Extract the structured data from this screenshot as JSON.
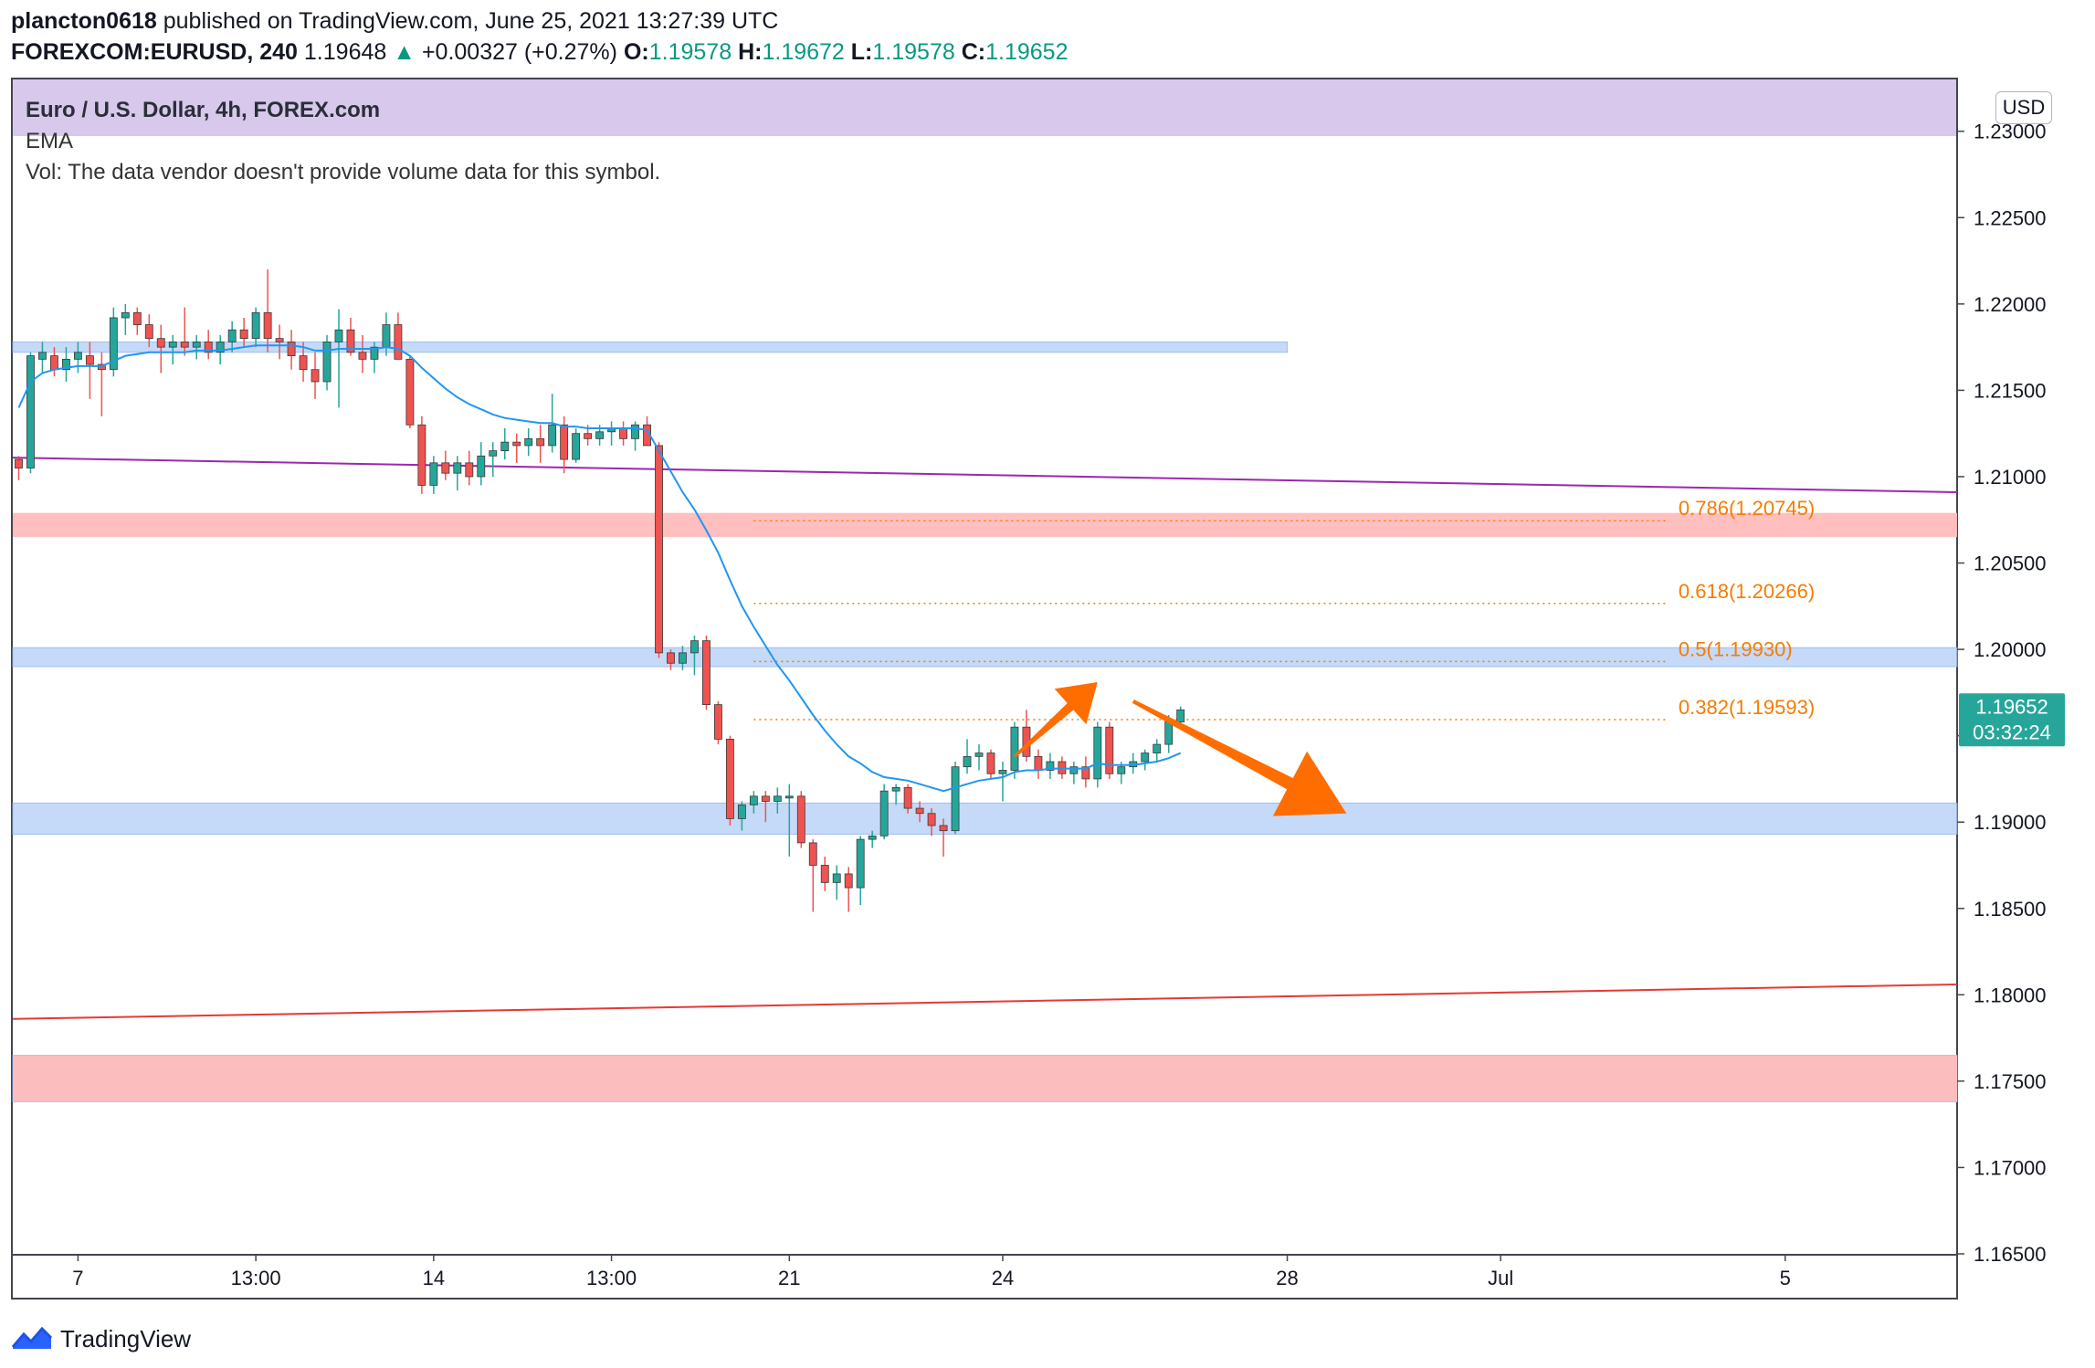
{
  "header": {
    "user": "plancton0618",
    "published": " published on TradingView.com, June 25, 2021 13:27:39 UTC",
    "symbol": "FOREXCOM:EURUSD, 240",
    "last": "1.19648",
    "change_arrow": "▲",
    "change": "+0.00327 (+0.27%)",
    "o_label": "O:",
    "o_value": "1.19578",
    "h_label": "H:",
    "h_value": "1.19672",
    "l_label": "L:",
    "l_value": "1.19578",
    "c_label": "C:",
    "c_value": "1.19652"
  },
  "legend": {
    "title": "Euro / U.S. Dollar, 4h, FOREX.com",
    "ema": "EMA",
    "vol": "Vol: The data vendor doesn't provide volume data for this symbol."
  },
  "currency_button": "USD",
  "price_tag": {
    "price": "1.19652",
    "countdown": "03:32:24"
  },
  "footer": {
    "brand": "TradingView",
    "logo_icon": "tradingview-logo-icon"
  },
  "colors": {
    "up": "#26a69a",
    "down": "#ef5350",
    "ema": "#2196f3",
    "fib": "#f57c00",
    "arrow": "#ff6d00",
    "support_zone": "#bbd3f7",
    "resistance_zone": "#ffbcbc",
    "header_band": "#d8c8ec",
    "trend_purple": "#9c27b0",
    "trend_red": "#e53935"
  },
  "chart_data": {
    "type": "candlestick",
    "title": "Euro / U.S. Dollar, 4h, FOREX.com",
    "ylim": [
      1.165,
      1.233
    ],
    "y_ticks": [
      "1.23000",
      "1.22500",
      "1.22000",
      "1.21500",
      "1.21000",
      "1.20500",
      "1.20000",
      "1.19500",
      "1.19000",
      "1.18500",
      "1.18000",
      "1.17500",
      "1.17000",
      "1.16500"
    ],
    "x_ticks": [
      "7",
      "13:00",
      "14",
      "13:00",
      "21",
      "24",
      "28",
      "Jul",
      "5"
    ],
    "x_tick_slots": [
      5,
      20,
      35,
      50,
      65,
      83,
      107,
      125,
      149
    ],
    "slot_count": 164,
    "candles": [
      [
        1.211,
        1.2112,
        1.2098,
        1.2105
      ],
      [
        1.2105,
        1.2172,
        1.2102,
        1.217
      ],
      [
        1.2168,
        1.2178,
        1.216,
        1.2172
      ],
      [
        1.217,
        1.2175,
        1.2158,
        1.2162
      ],
      [
        1.2162,
        1.2175,
        1.2155,
        1.2168
      ],
      [
        1.2168,
        1.2178,
        1.216,
        1.2172
      ],
      [
        1.217,
        1.2178,
        1.2145,
        1.2165
      ],
      [
        1.2165,
        1.2172,
        1.2135,
        1.2162
      ],
      [
        1.2162,
        1.2198,
        1.2158,
        1.2192
      ],
      [
        1.2192,
        1.22,
        1.2182,
        1.2195
      ],
      [
        1.2195,
        1.2198,
        1.2182,
        1.2188
      ],
      [
        1.2188,
        1.2194,
        1.2175,
        1.218
      ],
      [
        1.218,
        1.2188,
        1.216,
        1.2175
      ],
      [
        1.2175,
        1.2182,
        1.2165,
        1.2178
      ],
      [
        1.2178,
        1.2198,
        1.217,
        1.2175
      ],
      [
        1.2175,
        1.2182,
        1.2168,
        1.2178
      ],
      [
        1.2178,
        1.2185,
        1.2168,
        1.2172
      ],
      [
        1.2172,
        1.2182,
        1.2165,
        1.2178
      ],
      [
        1.2178,
        1.219,
        1.2172,
        1.2185
      ],
      [
        1.2185,
        1.2192,
        1.2175,
        1.218
      ],
      [
        1.218,
        1.2198,
        1.2175,
        1.2195
      ],
      [
        1.2195,
        1.222,
        1.2172,
        1.218
      ],
      [
        1.218,
        1.2188,
        1.2168,
        1.2178
      ],
      [
        1.2178,
        1.2185,
        1.2162,
        1.217
      ],
      [
        1.217,
        1.2178,
        1.2155,
        1.2162
      ],
      [
        1.2162,
        1.2172,
        1.2145,
        1.2155
      ],
      [
        1.2155,
        1.2182,
        1.215,
        1.2178
      ],
      [
        1.2178,
        1.2197,
        1.214,
        1.2185
      ],
      [
        1.2185,
        1.2192,
        1.217,
        1.2172
      ],
      [
        1.2172,
        1.2182,
        1.216,
        1.2168
      ],
      [
        1.2168,
        1.2178,
        1.216,
        1.2175
      ],
      [
        1.2175,
        1.2195,
        1.217,
        1.2188
      ],
      [
        1.2188,
        1.2195,
        1.2168,
        1.2168
      ],
      [
        1.2168,
        1.217,
        1.2128,
        1.213
      ],
      [
        1.213,
        1.2135,
        1.209,
        1.2095
      ],
      [
        1.2095,
        1.2112,
        1.209,
        1.2108
      ],
      [
        1.2108,
        1.2115,
        1.2098,
        1.2102
      ],
      [
        1.2102,
        1.2112,
        1.2092,
        1.2108
      ],
      [
        1.2108,
        1.2115,
        1.2095,
        1.21
      ],
      [
        1.21,
        1.212,
        1.2095,
        1.2112
      ],
      [
        1.2112,
        1.212,
        1.21,
        1.2115
      ],
      [
        1.2115,
        1.2128,
        1.211,
        1.212
      ],
      [
        1.212,
        1.2125,
        1.2108,
        1.2118
      ],
      [
        1.2118,
        1.2128,
        1.2112,
        1.2122
      ],
      [
        1.2122,
        1.213,
        1.2108,
        1.2118
      ],
      [
        1.2118,
        1.2148,
        1.2114,
        1.213
      ],
      [
        1.213,
        1.2135,
        1.2102,
        1.211
      ],
      [
        1.211,
        1.2128,
        1.2108,
        1.2125
      ],
      [
        1.2125,
        1.213,
        1.2118,
        1.2122
      ],
      [
        1.2122,
        1.213,
        1.2118,
        1.2126
      ],
      [
        1.2126,
        1.2132,
        1.2118,
        1.2128
      ],
      [
        1.2128,
        1.2132,
        1.2118,
        1.2122
      ],
      [
        1.2122,
        1.2132,
        1.2115,
        1.213
      ],
      [
        1.213,
        1.2135,
        1.2118,
        1.2118
      ],
      [
        1.2118,
        1.212,
        1.1995,
        1.1998
      ],
      [
        1.1998,
        1.2,
        1.1988,
        1.1992
      ],
      [
        1.1992,
        1.2002,
        1.1988,
        1.1998
      ],
      [
        1.1998,
        1.2008,
        1.1985,
        1.2005
      ],
      [
        1.2005,
        1.2008,
        1.1965,
        1.1968
      ],
      [
        1.1968,
        1.197,
        1.1945,
        1.1948
      ],
      [
        1.1948,
        1.195,
        1.1898,
        1.1902
      ],
      [
        1.1902,
        1.1912,
        1.1895,
        1.191
      ],
      [
        1.191,
        1.1918,
        1.1905,
        1.1915
      ],
      [
        1.1915,
        1.1918,
        1.19,
        1.1912
      ],
      [
        1.1912,
        1.192,
        1.1905,
        1.1915
      ],
      [
        1.1915,
        1.1922,
        1.188,
        1.1915
      ],
      [
        1.1915,
        1.1918,
        1.1885,
        1.1888
      ],
      [
        1.1888,
        1.189,
        1.1848,
        1.1875
      ],
      [
        1.1875,
        1.188,
        1.186,
        1.1865
      ],
      [
        1.1865,
        1.1875,
        1.1855,
        1.187
      ],
      [
        1.187,
        1.1874,
        1.1848,
        1.1862
      ],
      [
        1.1862,
        1.1892,
        1.1852,
        1.189
      ],
      [
        1.189,
        1.1895,
        1.1885,
        1.1892
      ],
      [
        1.1892,
        1.1922,
        1.189,
        1.1918
      ],
      [
        1.1918,
        1.1922,
        1.191,
        1.192
      ],
      [
        1.192,
        1.1922,
        1.1905,
        1.1908
      ],
      [
        1.1908,
        1.1912,
        1.19,
        1.1905
      ],
      [
        1.1905,
        1.1908,
        1.1892,
        1.1898
      ],
      [
        1.1898,
        1.1902,
        1.188,
        1.1895
      ],
      [
        1.1895,
        1.1935,
        1.1893,
        1.1932
      ],
      [
        1.1932,
        1.1948,
        1.1928,
        1.1938
      ],
      [
        1.1938,
        1.1945,
        1.193,
        1.194
      ],
      [
        1.194,
        1.1942,
        1.1925,
        1.1928
      ],
      [
        1.1928,
        1.1935,
        1.1912,
        1.193
      ],
      [
        1.193,
        1.1958,
        1.1925,
        1.1955
      ],
      [
        1.1955,
        1.1965,
        1.1935,
        1.1938
      ],
      [
        1.1938,
        1.1942,
        1.1925,
        1.193
      ],
      [
        1.193,
        1.194,
        1.1925,
        1.1935
      ],
      [
        1.1935,
        1.1938,
        1.1925,
        1.1928
      ],
      [
        1.1928,
        1.1935,
        1.1922,
        1.1932
      ],
      [
        1.1932,
        1.1938,
        1.192,
        1.1925
      ],
      [
        1.1925,
        1.1958,
        1.192,
        1.1955
      ],
      [
        1.1955,
        1.1958,
        1.1925,
        1.1928
      ],
      [
        1.1928,
        1.1935,
        1.1922,
        1.1932
      ],
      [
        1.1932,
        1.194,
        1.1928,
        1.1935
      ],
      [
        1.1935,
        1.1942,
        1.193,
        1.194
      ],
      [
        1.194,
        1.1948,
        1.1935,
        1.1945
      ],
      [
        1.1945,
        1.1962,
        1.194,
        1.1958
      ],
      [
        1.1958,
        1.1967,
        1.1957,
        1.1965
      ]
    ],
    "ema": [
      1.214,
      1.2155,
      1.216,
      1.2162,
      1.2163,
      1.2164,
      1.2164,
      1.2164,
      1.2167,
      1.217,
      1.2171,
      1.2172,
      1.2172,
      1.2172,
      1.2172,
      1.2173,
      1.2173,
      1.2173,
      1.2174,
      1.2175,
      1.2176,
      1.2176,
      1.2176,
      1.2176,
      1.2175,
      1.2173,
      1.2173,
      1.2174,
      1.2174,
      1.2174,
      1.2174,
      1.2175,
      1.2174,
      1.217,
      1.2163,
      1.2157,
      1.2151,
      1.2146,
      1.2142,
      1.2139,
      1.2136,
      1.2134,
      1.2133,
      1.2132,
      1.2131,
      1.2131,
      1.2129,
      1.2129,
      1.2128,
      1.2128,
      1.2128,
      1.2128,
      1.2128,
      1.2127,
      1.2115,
      1.2103,
      1.2091,
      1.2081,
      1.2069,
      1.2056,
      1.204,
      1.2025,
      1.2013,
      1.2002,
      1.1991,
      1.1982,
      1.1972,
      1.1962,
      1.1953,
      1.1945,
      1.1938,
      1.1934,
      1.1929,
      1.1926,
      1.1925,
      1.1924,
      1.1922,
      1.192,
      1.1918,
      1.192,
      1.1922,
      1.1924,
      1.1925,
      1.1926,
      1.1929,
      1.193,
      1.193,
      1.1931,
      1.1931,
      1.1931,
      1.1931,
      1.1934,
      1.1933,
      1.1933,
      1.1933,
      1.1934,
      1.1935,
      1.1937,
      1.194
    ],
    "support_zones": [
      [
        1.2172,
        1.2178
      ],
      [
        1.199,
        1.2001
      ],
      [
        1.1893,
        1.1911
      ],
      [
        1.1738,
        1.1765
      ]
    ],
    "resistance_zones": [
      [
        1.2065,
        1.2079
      ],
      [
        1.1738,
        1.1765
      ]
    ],
    "fibonacci": [
      {
        "ratio": "0.786(1.20745)",
        "value": 1.20745
      },
      {
        "ratio": "0.618(1.20266)",
        "value": 1.20266
      },
      {
        "ratio": "0.5(1.19930)",
        "value": 1.1993
      },
      {
        "ratio": "0.382(1.19593)",
        "value": 1.19593
      }
    ],
    "trendlines": [
      {
        "name": "purple",
        "from": [
          0,
          1.2111
        ],
        "to": [
          163,
          1.2091
        ]
      },
      {
        "name": "red",
        "from": [
          0,
          1.1786
        ],
        "to": [
          163,
          1.1806
        ]
      }
    ],
    "arrows": [
      {
        "direction": "up",
        "from": [
          84,
          1.1938
        ],
        "to": [
          91,
          1.1981
        ]
      },
      {
        "direction": "down",
        "from": [
          94,
          1.197
        ],
        "to": [
          112,
          1.1905
        ]
      }
    ]
  }
}
